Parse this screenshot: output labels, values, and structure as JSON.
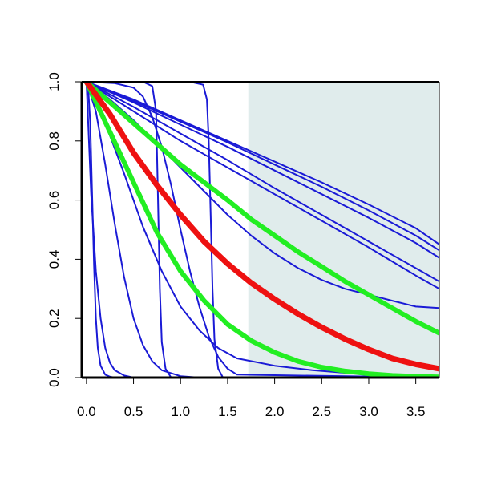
{
  "chart_data": {
    "type": "line",
    "title": "",
    "xlabel": "",
    "ylabel": "",
    "xlim": [
      -0.05,
      3.75
    ],
    "ylim": [
      0,
      1
    ],
    "x_ticks": [
      0.0,
      0.5,
      1.0,
      1.5,
      2.0,
      2.5,
      3.0,
      3.5
    ],
    "x_tick_labels": [
      "0.0",
      "0.5",
      "1.0",
      "1.5",
      "2.0",
      "2.5",
      "3.0",
      "3.5"
    ],
    "y_ticks": [
      0.0,
      0.2,
      0.4,
      0.6,
      0.8,
      1.0
    ],
    "y_tick_labels": [
      "0.0",
      "0.2",
      "0.4",
      "0.6",
      "0.8",
      "1.0"
    ],
    "grid": false,
    "legend": "none",
    "shaded_region": {
      "x_from": 1.72,
      "x_to": 3.75,
      "color": "#e0ecec"
    },
    "colors": {
      "blue": "#1a1ad6",
      "red": "#ee1111",
      "green": "#22ee22",
      "axis": "#000000"
    },
    "series": [
      {
        "color": "blue",
        "x": [
          0,
          0.02,
          0.04,
          0.06,
          0.08,
          0.1,
          0.12,
          0.15,
          0.2,
          0.25,
          0.3,
          3.75
        ],
        "values": [
          1.0,
          0.97,
          0.86,
          0.62,
          0.38,
          0.2,
          0.1,
          0.04,
          0.01,
          0.003,
          0.0,
          0.0
        ]
      },
      {
        "color": "blue",
        "x": [
          0,
          0.05,
          0.1,
          0.15,
          0.2,
          0.25,
          0.3,
          0.4,
          0.5,
          3.75
        ],
        "values": [
          1.0,
          0.62,
          0.36,
          0.2,
          0.1,
          0.05,
          0.025,
          0.007,
          0.0,
          0.0
        ]
      },
      {
        "color": "blue",
        "x": [
          0,
          0.1,
          0.2,
          0.3,
          0.4,
          0.5,
          0.6,
          0.7,
          0.8,
          1.0,
          1.2,
          3.75
        ],
        "values": [
          1.0,
          0.9,
          0.72,
          0.52,
          0.34,
          0.2,
          0.11,
          0.055,
          0.025,
          0.005,
          0.0,
          0.0
        ]
      },
      {
        "color": "blue",
        "x": [
          0,
          0.2,
          0.4,
          0.6,
          0.8,
          1.0,
          1.2,
          1.4,
          1.6,
          2.0,
          2.4,
          2.8,
          3.2,
          3.75
        ],
        "values": [
          1.0,
          0.86,
          0.69,
          0.51,
          0.36,
          0.24,
          0.16,
          0.1,
          0.065,
          0.04,
          0.025,
          0.015,
          0.008,
          0.002
        ]
      },
      {
        "color": "blue",
        "x": [
          0,
          0.6,
          0.7,
          0.74,
          0.76,
          0.78,
          0.8,
          0.84,
          0.9,
          3.75
        ],
        "values": [
          1.0,
          1.0,
          0.985,
          0.9,
          0.6,
          0.3,
          0.12,
          0.03,
          0.0,
          0.0
        ]
      },
      {
        "color": "blue",
        "x": [
          0,
          0.3,
          0.5,
          0.6,
          0.7,
          0.8,
          0.9,
          1.0,
          1.1,
          1.2,
          1.3,
          1.4,
          1.5,
          1.6,
          3.75
        ],
        "values": [
          1.0,
          0.995,
          0.98,
          0.95,
          0.88,
          0.78,
          0.65,
          0.5,
          0.36,
          0.24,
          0.14,
          0.07,
          0.03,
          0.01,
          0.0
        ]
      },
      {
        "color": "blue",
        "x": [
          0,
          1.1,
          1.24,
          1.28,
          1.3,
          1.32,
          1.34,
          1.36,
          1.4,
          1.45,
          3.75
        ],
        "values": [
          1.0,
          1.0,
          0.99,
          0.94,
          0.8,
          0.55,
          0.3,
          0.13,
          0.03,
          0.0,
          0.0
        ]
      },
      {
        "color": "blue",
        "x": [
          0,
          0.25,
          0.5,
          0.75,
          1.0,
          1.25,
          1.5,
          1.75,
          2.0,
          2.25,
          2.5,
          2.75,
          3.0,
          3.25,
          3.5,
          3.75
        ],
        "values": [
          1.0,
          0.94,
          0.87,
          0.79,
          0.71,
          0.63,
          0.55,
          0.48,
          0.42,
          0.37,
          0.33,
          0.3,
          0.28,
          0.26,
          0.24,
          0.235
        ]
      },
      {
        "color": "blue",
        "x": [
          0,
          0.5,
          1.0,
          1.5,
          2.0,
          2.5,
          3.0,
          3.5,
          3.75
        ],
        "values": [
          1.0,
          0.9,
          0.8,
          0.71,
          0.62,
          0.53,
          0.44,
          0.345,
          0.3
        ]
      },
      {
        "color": "blue",
        "x": [
          0,
          0.5,
          1.0,
          1.5,
          2.0,
          2.5,
          3.0,
          3.5,
          3.75
        ],
        "values": [
          1.0,
          0.915,
          0.825,
          0.735,
          0.64,
          0.55,
          0.46,
          0.37,
          0.325
        ]
      },
      {
        "color": "blue",
        "x": [
          0,
          0.5,
          1.0,
          1.5,
          2.0,
          2.5,
          3.0,
          3.5,
          3.75
        ],
        "values": [
          1.0,
          0.93,
          0.855,
          0.78,
          0.7,
          0.62,
          0.54,
          0.455,
          0.405
        ]
      },
      {
        "color": "blue",
        "x": [
          0,
          0.5,
          1.0,
          1.5,
          2.0,
          2.5,
          3.0,
          3.5,
          3.75
        ],
        "values": [
          1.0,
          0.935,
          0.865,
          0.795,
          0.72,
          0.645,
          0.565,
          0.48,
          0.43
        ]
      },
      {
        "color": "blue",
        "x": [
          0,
          0.5,
          1.0,
          1.5,
          2.0,
          2.5,
          3.0,
          3.5,
          3.75
        ],
        "values": [
          1.0,
          0.94,
          0.87,
          0.8,
          0.73,
          0.66,
          0.585,
          0.505,
          0.45
        ]
      },
      {
        "color": "green",
        "width": 6,
        "x": [
          0,
          0.25,
          0.5,
          0.75,
          1.0,
          1.25,
          1.5,
          1.75,
          2.0,
          2.25,
          2.5,
          2.75,
          3.0,
          3.25,
          3.5,
          3.75
        ],
        "values": [
          1.0,
          0.93,
          0.86,
          0.79,
          0.72,
          0.66,
          0.6,
          0.535,
          0.48,
          0.425,
          0.375,
          0.325,
          0.28,
          0.235,
          0.19,
          0.15
        ]
      },
      {
        "color": "green",
        "width": 6,
        "x": [
          0,
          0.25,
          0.5,
          0.75,
          1.0,
          1.25,
          1.5,
          1.75,
          2.0,
          2.25,
          2.5,
          2.75,
          3.0,
          3.25,
          3.5,
          3.75
        ],
        "values": [
          1.0,
          0.83,
          0.66,
          0.49,
          0.36,
          0.26,
          0.18,
          0.125,
          0.085,
          0.055,
          0.035,
          0.022,
          0.013,
          0.007,
          0.004,
          0.002
        ]
      },
      {
        "color": "red",
        "width": 7,
        "x": [
          0,
          0.25,
          0.5,
          0.75,
          1.0,
          1.25,
          1.5,
          1.75,
          2.0,
          2.25,
          2.5,
          2.75,
          3.0,
          3.25,
          3.5,
          3.75
        ],
        "values": [
          1.0,
          0.89,
          0.76,
          0.65,
          0.55,
          0.46,
          0.385,
          0.32,
          0.265,
          0.215,
          0.17,
          0.13,
          0.095,
          0.065,
          0.045,
          0.03
        ]
      }
    ]
  }
}
